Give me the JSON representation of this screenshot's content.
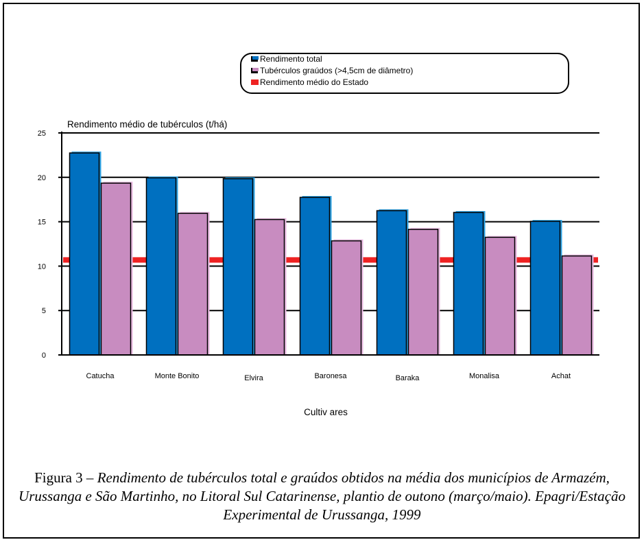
{
  "chart_data": {
    "type": "bar",
    "ylabel": "Rendimento médio de tubérculos (t/há)",
    "xlabel": "Cultiv ares",
    "categories": [
      "Catucha",
      "Monte Bonito",
      "Elvira",
      "Baronesa",
      "Baraka",
      "Monalisa",
      "Achat"
    ],
    "series": [
      {
        "name": "Rendimento total",
        "color": "#0070c0",
        "values": [
          22.9,
          20.1,
          20.0,
          17.9,
          16.4,
          16.2,
          15.2
        ]
      },
      {
        "name": "Tubérculos graúdos (>4,5cm de diâmetro)",
        "color": "#c88cc0",
        "values": [
          19.5,
          16.1,
          15.4,
          13.0,
          14.3,
          13.4,
          11.3
        ]
      }
    ],
    "reference_line": {
      "name": "Rendimento médio do Estado",
      "value": 10.7,
      "color": "#ee2222"
    },
    "ylim": [
      0,
      25
    ],
    "yticks": [
      0,
      5,
      10,
      15,
      20,
      25
    ],
    "grid": true,
    "legend_position": "top-center"
  },
  "caption": {
    "label": "Figura 3 – ",
    "text": "Rendimento de tubérculos total e graúdos obtidos na média dos municípios de Armazém, Urussanga e São Martinho, no Litoral Sul Catarinense, plantio de outono (março/maio). Epagri/Estação Experimental de Urussanga, 1999"
  }
}
